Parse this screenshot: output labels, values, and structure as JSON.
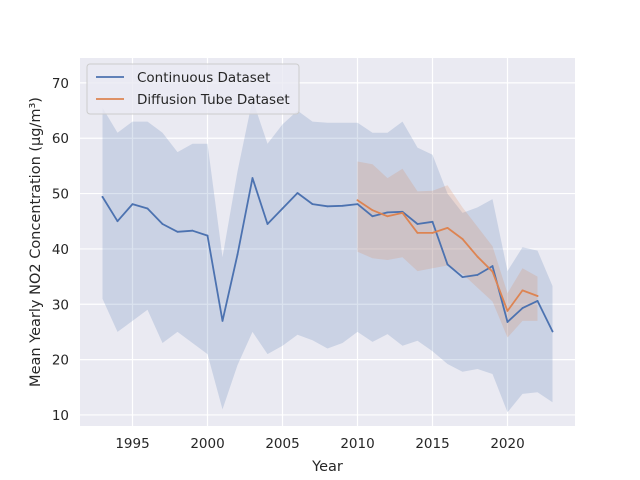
{
  "chart_data": {
    "type": "line",
    "title": "",
    "xlabel": "Year",
    "ylabel": "Mean Yearly NO2 Concentration (µg/m³)",
    "xlim": [
      1991.5,
      2024.5
    ],
    "ylim": [
      8,
      74.5
    ],
    "xticks": [
      1995,
      2000,
      2005,
      2010,
      2015,
      2020
    ],
    "yticks": [
      10,
      20,
      30,
      40,
      50,
      60,
      70
    ],
    "grid": true,
    "legend_position": "top-left",
    "series": [
      {
        "name": "Continuous Dataset",
        "color": "#4c72b0",
        "x": [
          1993,
          1994,
          1995,
          1996,
          1997,
          1998,
          1999,
          2000,
          2001,
          2002,
          2003,
          2004,
          2005,
          2006,
          2007,
          2008,
          2009,
          2010,
          2011,
          2012,
          2013,
          2014,
          2015,
          2016,
          2017,
          2018,
          2019,
          2020,
          2021,
          2022,
          2023
        ],
        "y": [
          49.4,
          45.0,
          48.1,
          47.3,
          44.5,
          43.1,
          43.3,
          42.4,
          27.0,
          39.0,
          52.8,
          44.5,
          47.3,
          50.1,
          48.1,
          47.7,
          47.8,
          48.1,
          45.9,
          46.6,
          46.7,
          44.5,
          44.9,
          37.2,
          34.9,
          35.3,
          36.9,
          26.8,
          29.3,
          30.6,
          25.1
        ],
        "lower": [
          31,
          25,
          27,
          29,
          23,
          25,
          23,
          21,
          11,
          19,
          25,
          21,
          22.5,
          24.5,
          23.5,
          22,
          23,
          25,
          23.2,
          24.6,
          22.5,
          23.4,
          21.5,
          19.2,
          17.8,
          18.3,
          17.4,
          10.5,
          13.8,
          14.1,
          12.3
        ],
        "upper": [
          65.5,
          61,
          63,
          63,
          61,
          57.5,
          59,
          59,
          38.5,
          54,
          67,
          59,
          62.5,
          65,
          63,
          62.8,
          62.8,
          62.8,
          61,
          61,
          63,
          58.3,
          57,
          50,
          46.5,
          47.5,
          49,
          36,
          40.3,
          39.7,
          33.3
        ]
      },
      {
        "name": "Diffusion Tube Dataset",
        "color": "#dd8452",
        "x": [
          2010,
          2011,
          2012,
          2013,
          2014,
          2015,
          2016,
          2017,
          2018,
          2019,
          2020,
          2021,
          2022
        ],
        "y": [
          48.8,
          47.0,
          45.9,
          46.5,
          42.9,
          42.9,
          43.8,
          41.8,
          38.6,
          35.9,
          28.8,
          32.5,
          31.5
        ],
        "lower": [
          39.5,
          38.3,
          38.0,
          38.5,
          36.0,
          36.5,
          37.0,
          35.5,
          33.0,
          30.5,
          24.0,
          27.0,
          27.0
        ],
        "upper": [
          55.8,
          55.3,
          52.8,
          54.5,
          50.4,
          50.5,
          51.5,
          47.5,
          44.0,
          40.5,
          32.0,
          36.5,
          35.0
        ]
      }
    ]
  }
}
